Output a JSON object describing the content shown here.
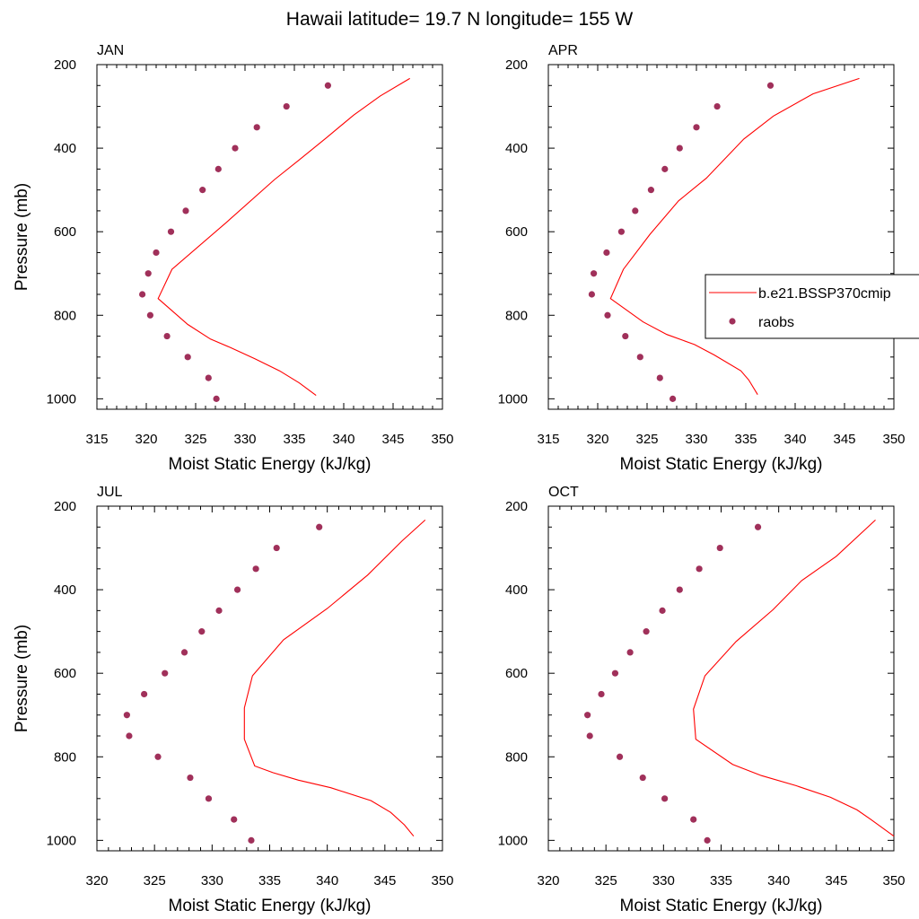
{
  "title": "Hawaii  latitude= 19.7 N longitude= 155 W",
  "colors": {
    "model": "#ff0000",
    "obs": "#a0305a",
    "frame": "#000000"
  },
  "legend": {
    "placement": "right",
    "entries": [
      "b.e21.BSSP370cmip",
      "raobs"
    ]
  },
  "chart_data": [
    {
      "type": "line",
      "title": "JAN",
      "xlabel": "Moist Static Energy (kJ/kg)",
      "ylabel": "Pressure (mb)",
      "xlim": [
        315,
        350
      ],
      "ylim": [
        200,
        1025
      ],
      "y_inverted": true,
      "xticks": [
        315,
        320,
        325,
        330,
        335,
        340,
        345,
        350
      ],
      "yticks": [
        200,
        400,
        600,
        800,
        1000
      ],
      "series": [
        {
          "name": "b.e21.BSSP370cmip",
          "style": "line",
          "points": [
            [
              337.2,
              992
            ],
            [
              335.5,
              962
            ],
            [
              333.5,
              933
            ],
            [
              331.0,
              904
            ],
            [
              328.5,
              877
            ],
            [
              326.5,
              857
            ],
            [
              324.2,
              822
            ],
            [
              321.2,
              760
            ],
            [
              322.6,
              690
            ],
            [
              328.0,
              580
            ],
            [
              333.0,
              475
            ],
            [
              335.5,
              428
            ],
            [
              338.2,
              376
            ],
            [
              341.0,
              321
            ],
            [
              343.7,
              275
            ],
            [
              346.7,
              233
            ]
          ]
        },
        {
          "name": "raobs",
          "style": "markers",
          "points": [
            [
              327.1,
              1000
            ],
            [
              326.3,
              950
            ],
            [
              324.2,
              900
            ],
            [
              322.1,
              850
            ],
            [
              320.4,
              800
            ],
            [
              319.6,
              750
            ],
            [
              320.2,
              700
            ],
            [
              321.0,
              650
            ],
            [
              322.5,
              600
            ],
            [
              324.0,
              550
            ],
            [
              325.7,
              500
            ],
            [
              327.3,
              450
            ],
            [
              329.0,
              400
            ],
            [
              331.2,
              350
            ],
            [
              334.2,
              300
            ],
            [
              338.4,
              250
            ]
          ]
        }
      ]
    },
    {
      "type": "line",
      "title": "APR",
      "xlabel": "Moist Static Energy (kJ/kg)",
      "ylabel": "",
      "xlim": [
        315,
        350
      ],
      "ylim": [
        200,
        1025
      ],
      "y_inverted": true,
      "xticks": [
        315,
        320,
        325,
        330,
        335,
        340,
        345,
        350
      ],
      "yticks": [
        200,
        400,
        600,
        800,
        1000
      ],
      "series": [
        {
          "name": "b.e21.BSSP370cmip",
          "style": "line",
          "points": [
            [
              336.2,
              990
            ],
            [
              335.3,
              955
            ],
            [
              334.5,
              933
            ],
            [
              331.8,
              895
            ],
            [
              329.8,
              870
            ],
            [
              327.0,
              846
            ],
            [
              324.6,
              816
            ],
            [
              321.3,
              760
            ],
            [
              322.6,
              690
            ],
            [
              325.3,
              606
            ],
            [
              328.2,
              526
            ],
            [
              331.0,
              472
            ],
            [
              334.8,
              378
            ],
            [
              337.8,
              323
            ],
            [
              341.8,
              270
            ],
            [
              346.5,
              233
            ]
          ]
        },
        {
          "name": "raobs",
          "style": "markers",
          "points": [
            [
              327.6,
              1000
            ],
            [
              326.3,
              950
            ],
            [
              324.3,
              900
            ],
            [
              322.8,
              850
            ],
            [
              321.0,
              800
            ],
            [
              319.4,
              750
            ],
            [
              319.6,
              700
            ],
            [
              320.9,
              650
            ],
            [
              322.4,
              600
            ],
            [
              323.8,
              550
            ],
            [
              325.4,
              500
            ],
            [
              326.8,
              450
            ],
            [
              328.3,
              400
            ],
            [
              330.0,
              350
            ],
            [
              332.1,
              300
            ],
            [
              337.5,
              250
            ]
          ]
        }
      ]
    },
    {
      "type": "line",
      "title": "JUL",
      "xlabel": "Moist Static Energy (kJ/kg)",
      "ylabel": "Pressure (mb)",
      "xlim": [
        320,
        350
      ],
      "ylim": [
        200,
        1025
      ],
      "y_inverted": true,
      "xticks": [
        320,
        325,
        330,
        335,
        340,
        345,
        350
      ],
      "yticks": [
        200,
        400,
        600,
        800,
        1000
      ],
      "series": [
        {
          "name": "b.e21.BSSP370cmip",
          "style": "line",
          "points": [
            [
              347.5,
              990
            ],
            [
              346.7,
              963
            ],
            [
              345.5,
              933
            ],
            [
              343.8,
              905
            ],
            [
              340.3,
              874
            ],
            [
              337.5,
              856
            ],
            [
              335.3,
              838
            ],
            [
              333.7,
              822
            ],
            [
              332.8,
              758
            ],
            [
              332.8,
              683
            ],
            [
              333.5,
              606
            ],
            [
              336.2,
              520
            ],
            [
              340.0,
              445
            ],
            [
              343.5,
              365
            ],
            [
              346.5,
              283
            ],
            [
              348.5,
              233
            ]
          ]
        },
        {
          "name": "raobs",
          "style": "markers",
          "points": [
            [
              333.4,
              1000
            ],
            [
              331.9,
              950
            ],
            [
              329.7,
              900
            ],
            [
              328.1,
              850
            ],
            [
              325.3,
              800
            ],
            [
              322.8,
              750
            ],
            [
              322.6,
              700
            ],
            [
              324.1,
              650
            ],
            [
              325.9,
              600
            ],
            [
              327.6,
              550
            ],
            [
              329.1,
              500
            ],
            [
              330.6,
              450
            ],
            [
              332.2,
              400
            ],
            [
              333.8,
              350
            ],
            [
              335.6,
              300
            ],
            [
              339.3,
              250
            ]
          ]
        }
      ]
    },
    {
      "type": "line",
      "title": "OCT",
      "xlabel": "Moist Static Energy (kJ/kg)",
      "ylabel": "",
      "xlim": [
        320,
        350
      ],
      "ylim": [
        200,
        1025
      ],
      "y_inverted": true,
      "xticks": [
        320,
        325,
        330,
        335,
        340,
        345,
        350
      ],
      "yticks": [
        200,
        400,
        600,
        800,
        1000
      ],
      "series": [
        {
          "name": "b.e21.BSSP370cmip",
          "style": "line",
          "points": [
            [
              350.0,
              990
            ],
            [
              348.0,
              950
            ],
            [
              346.8,
              927
            ],
            [
              344.5,
              897
            ],
            [
              341.5,
              869
            ],
            [
              338.5,
              845
            ],
            [
              336.0,
              818
            ],
            [
              332.8,
              758
            ],
            [
              332.6,
              686
            ],
            [
              333.6,
              606
            ],
            [
              336.3,
              524
            ],
            [
              339.5,
              448
            ],
            [
              342.0,
              378
            ],
            [
              345.0,
              320
            ],
            [
              348.4,
              233
            ]
          ]
        },
        {
          "name": "raobs",
          "style": "markers",
          "points": [
            [
              333.8,
              1000
            ],
            [
              332.6,
              950
            ],
            [
              330.1,
              900
            ],
            [
              328.2,
              850
            ],
            [
              326.2,
              800
            ],
            [
              323.6,
              750
            ],
            [
              323.4,
              700
            ],
            [
              324.6,
              650
            ],
            [
              325.8,
              600
            ],
            [
              327.1,
              550
            ],
            [
              328.5,
              500
            ],
            [
              329.9,
              450
            ],
            [
              331.4,
              400
            ],
            [
              333.1,
              350
            ],
            [
              334.9,
              300
            ],
            [
              338.2,
              250
            ]
          ]
        }
      ]
    }
  ]
}
